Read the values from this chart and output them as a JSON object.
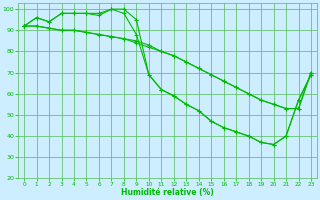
{
  "xlabel": "Humidité relative (%)",
  "bg_color": "#cceeff",
  "grid_color": "#55bb55",
  "line_color": "#00bb00",
  "xlim": [
    -0.5,
    23.5
  ],
  "ylim": [
    20,
    103
  ],
  "xticks": [
    0,
    1,
    2,
    3,
    4,
    5,
    6,
    7,
    8,
    9,
    10,
    11,
    12,
    13,
    14,
    15,
    16,
    17,
    18,
    19,
    20,
    21,
    22,
    23
  ],
  "yticks": [
    20,
    30,
    40,
    50,
    60,
    70,
    80,
    90,
    100
  ],
  "line1_x": [
    0,
    1,
    2,
    3,
    4,
    5,
    6,
    7,
    8,
    9,
    10,
    11,
    12,
    13,
    14,
    15,
    16,
    17,
    18,
    19,
    20,
    21,
    22,
    23
  ],
  "line1_y": [
    92,
    96,
    94,
    98,
    98,
    98,
    98,
    100,
    100,
    95,
    69,
    62,
    59,
    55,
    52,
    47,
    44,
    42,
    40,
    37,
    36,
    40,
    57,
    69
  ],
  "line2_x": [
    0,
    1,
    2,
    3,
    4,
    5,
    6,
    7,
    8,
    9,
    10,
    11,
    12,
    13,
    14,
    15,
    16,
    17,
    18,
    19,
    20,
    21,
    22,
    23
  ],
  "line2_y": [
    92,
    96,
    94,
    98,
    98,
    98,
    97,
    100,
    98,
    88,
    69,
    62,
    59,
    55,
    52,
    47,
    44,
    42,
    40,
    37,
    36,
    40,
    57,
    69
  ],
  "line3_x": [
    0,
    1,
    2,
    3,
    4,
    5,
    6,
    7,
    8,
    9,
    10,
    11,
    12,
    13,
    14,
    15,
    16,
    17,
    18,
    19,
    20,
    21,
    22,
    23
  ],
  "line3_y": [
    92,
    92,
    91,
    90,
    90,
    89,
    88,
    87,
    86,
    85,
    83,
    80,
    78,
    75,
    72,
    69,
    66,
    63,
    60,
    57,
    55,
    53,
    53,
    70
  ],
  "line4_x": [
    0,
    1,
    2,
    3,
    4,
    5,
    6,
    7,
    8,
    9,
    10,
    11,
    12,
    13,
    14,
    15,
    16,
    17,
    18,
    19,
    20,
    21,
    22,
    23
  ],
  "line4_y": [
    92,
    92,
    91,
    90,
    90,
    89,
    88,
    87,
    86,
    84,
    82,
    80,
    78,
    75,
    72,
    69,
    66,
    63,
    60,
    57,
    55,
    53,
    53,
    70
  ]
}
